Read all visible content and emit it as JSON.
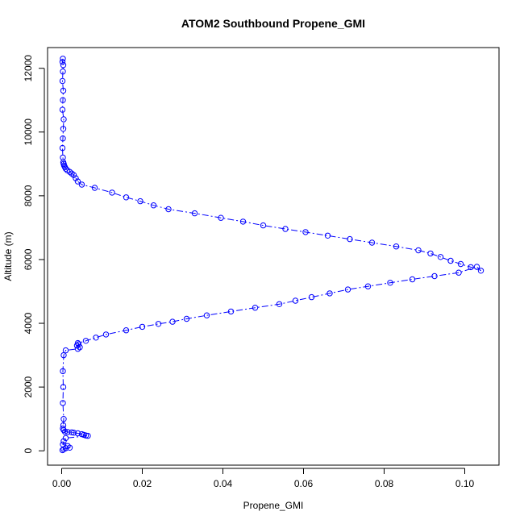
{
  "chart_data": {
    "type": "scatter",
    "title": "ATOM2 Southbound Propene_GMI",
    "xlabel": "Propene_GMI",
    "ylabel": "Altitude (m)",
    "xlim": [
      -0.0035,
      0.1085
    ],
    "ylim": [
      -450,
      12650
    ],
    "x_ticks": [
      0.0,
      0.02,
      0.04,
      0.06,
      0.08,
      0.1
    ],
    "x_tick_labels": [
      "0.00",
      "0.02",
      "0.04",
      "0.06",
      "0.08",
      "0.10"
    ],
    "y_ticks": [
      0,
      2000,
      4000,
      6000,
      8000,
      10000,
      12000
    ],
    "y_tick_labels": [
      "0",
      "2000",
      "4000",
      "6000",
      "8000",
      "10000",
      "12000"
    ],
    "grid": false,
    "legend": "none",
    "marker": "open-circle",
    "line_style": "dash-dot",
    "color": "#0000ff",
    "series": [
      {
        "x": [
          0.0003,
          0.0002,
          0.0004,
          0.0003,
          0.0002,
          0.0004,
          0.0003,
          0.0002,
          0.0005,
          0.0004,
          0.0003,
          0.0002,
          0.0003,
          0.0004,
          0.0005,
          0.0006,
          0.0008,
          0.001,
          0.0014,
          0.002,
          0.0025,
          0.003,
          0.0035,
          0.004,
          0.005,
          0.0082,
          0.0125,
          0.016,
          0.0195,
          0.0228,
          0.0265,
          0.033,
          0.0395,
          0.045,
          0.05,
          0.0555,
          0.0605,
          0.066,
          0.0715,
          0.077,
          0.083,
          0.0885,
          0.0915,
          0.094,
          0.0965,
          0.099,
          0.1015,
          0.104,
          0.103,
          0.0985,
          0.0925,
          0.087,
          0.0815,
          0.076,
          0.071,
          0.0665,
          0.062,
          0.058,
          0.054,
          0.048,
          0.042,
          0.036,
          0.031,
          0.0275,
          0.024,
          0.02,
          0.016,
          0.011,
          0.0085,
          0.006,
          0.004,
          0.0042,
          0.0038,
          0.0045,
          0.004,
          0.001,
          0.0005,
          0.0003,
          0.0004,
          0.0003,
          0.0005,
          0.0004,
          0.0003,
          0.0005,
          0.0008,
          0.0015,
          0.0025,
          0.003,
          0.004,
          0.005,
          0.0055,
          0.006,
          0.0065,
          0.001,
          0.0005,
          0.0003,
          0.0015,
          0.002,
          0.001,
          0.0005,
          0.0002
        ],
        "y": [
          12300,
          12200,
          12100,
          11900,
          11600,
          11300,
          11000,
          10700,
          10400,
          10100,
          9800,
          9500,
          9200,
          9050,
          9000,
          8950,
          8900,
          8850,
          8800,
          8750,
          8700,
          8650,
          8550,
          8450,
          8350,
          8250,
          8100,
          7950,
          7830,
          7700,
          7580,
          7450,
          7310,
          7190,
          7070,
          6960,
          6860,
          6750,
          6640,
          6530,
          6410,
          6290,
          6190,
          6080,
          5960,
          5860,
          5760,
          5650,
          5770,
          5590,
          5480,
          5380,
          5270,
          5160,
          5060,
          4940,
          4820,
          4710,
          4600,
          4490,
          4370,
          4250,
          4140,
          4050,
          3980,
          3890,
          3780,
          3650,
          3550,
          3450,
          3380,
          3340,
          3300,
          3250,
          3200,
          3150,
          3000,
          2500,
          2000,
          1500,
          1000,
          800,
          700,
          650,
          600,
          590,
          580,
          570,
          550,
          520,
          500,
          480,
          470,
          400,
          300,
          200,
          150,
          100,
          80,
          50,
          20
        ]
      }
    ]
  }
}
